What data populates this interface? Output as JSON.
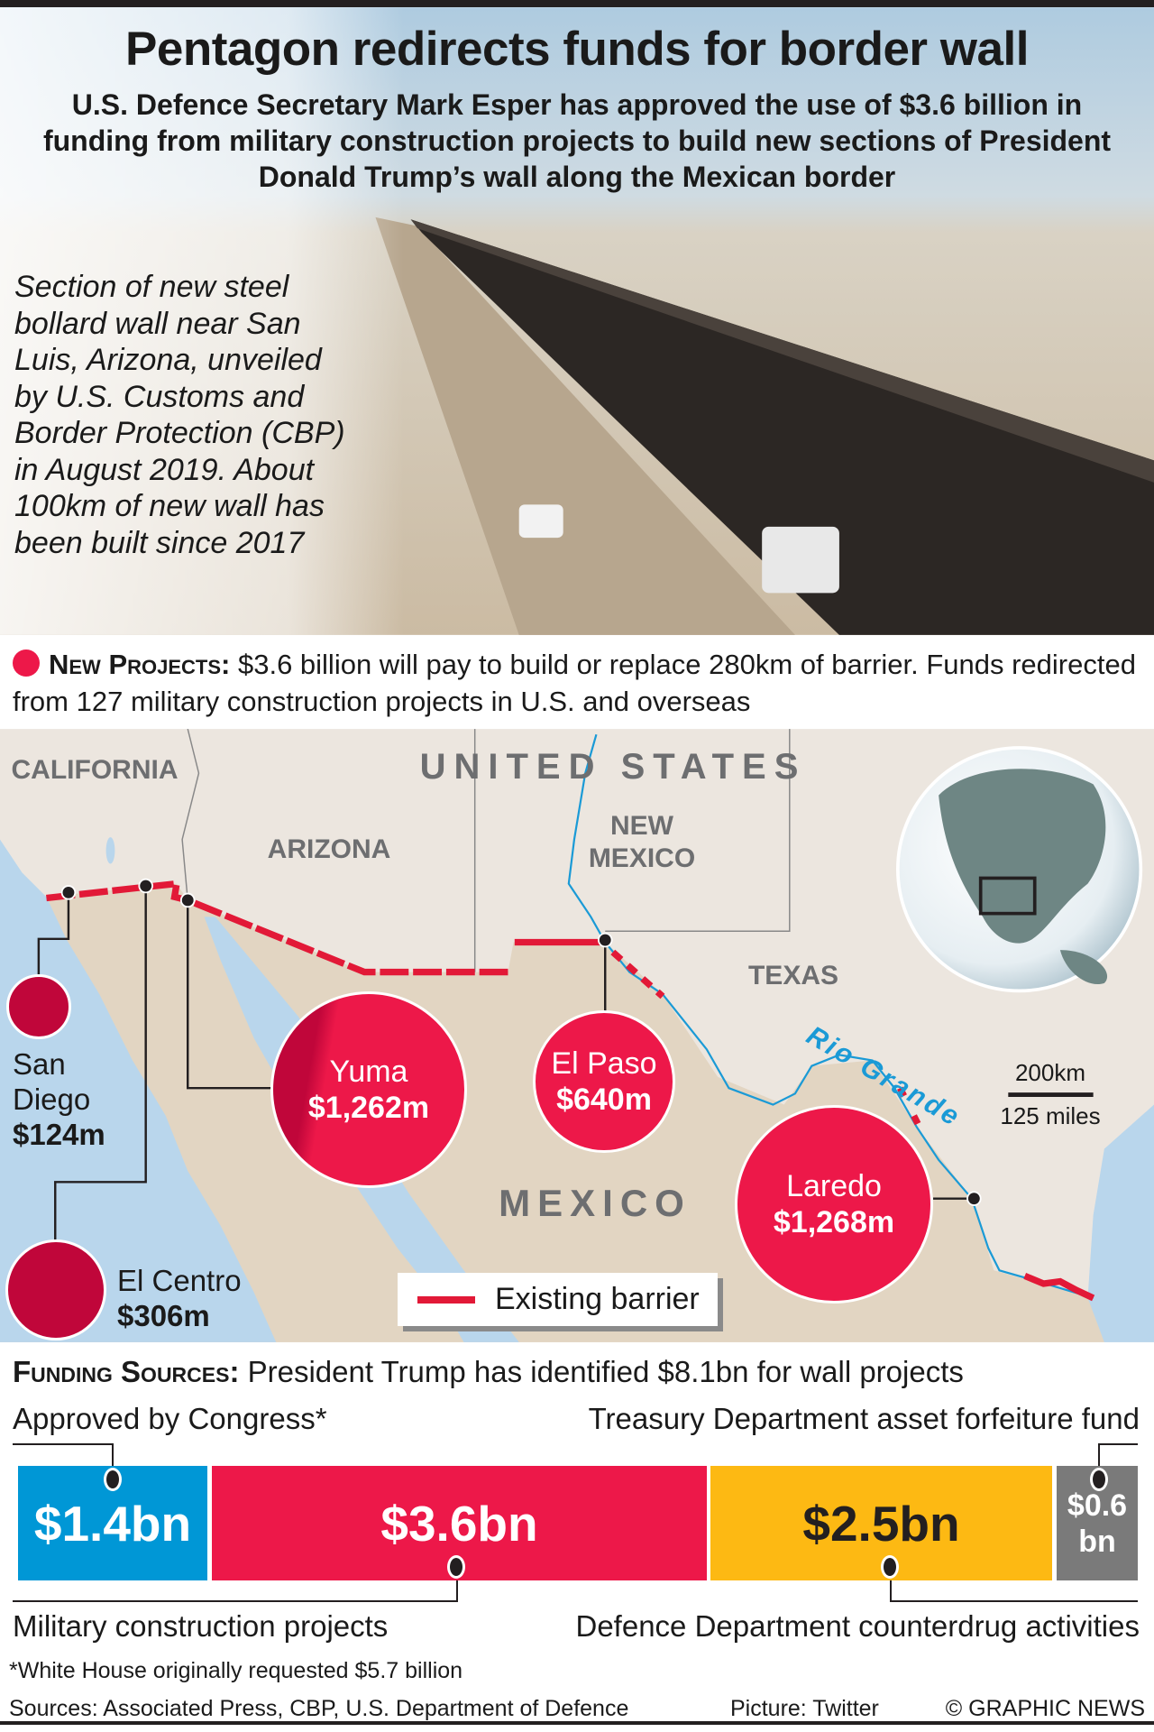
{
  "header": {
    "title": "Pentagon redirects funds for border wall",
    "subtitle": "U.S. Defence Secretary Mark Esper has approved the use of $3.6 billion in funding from military construction projects to build new sections of President Donald Trump’s wall along the Mexican border",
    "photo_caption": "Section of new steel bollard wall near San Luis, Arizona, unveiled by U.S. Customs and Border Protection (CBP) in August 2019. About 100km of new wall has been built since 2017"
  },
  "new_projects": {
    "heading": "New Projects:",
    "text": " $3.6 billion will pay to build or replace 280km of barrier. Funds redirected from 127 military construction projects in U.S. and overseas"
  },
  "map": {
    "labels": {
      "california": "CALIFORNIA",
      "united_states": "UNITED STATES",
      "arizona": "ARIZONA",
      "new_mexico": "NEW MEXICO",
      "texas": "TEXAS",
      "mexico": "MEXICO",
      "rio_grande": "Rio Grande"
    },
    "scale": {
      "km": "200km",
      "miles": "125 miles"
    },
    "legend": "Existing barrier",
    "projects": [
      {
        "name": "San Diego",
        "amount": "$124m"
      },
      {
        "name": "El Centro",
        "amount": "$306m"
      },
      {
        "name": "Yuma",
        "amount": "$1,262m"
      },
      {
        "name": "El Paso",
        "amount": "$640m"
      },
      {
        "name": "Laredo",
        "amount": "$1,268m"
      }
    ],
    "colors": {
      "project": "#ed1849",
      "project_dark": "#c0063a",
      "barrier": "#e21937",
      "river": "#1a9ad6"
    }
  },
  "funding": {
    "heading": "Funding Sources:",
    "text": " President Trump has identified $8.1bn for wall projects",
    "segments": [
      {
        "label": "Approved by Congress*",
        "value": "$1.4bn",
        "amount_bn": 1.4,
        "color": "#0097d6"
      },
      {
        "label": "Military construction projects",
        "value": "$3.6bn",
        "amount_bn": 3.6,
        "color": "#ed1849"
      },
      {
        "label": "Defence Department counterdrug activities",
        "value": "$2.5bn",
        "amount_bn": 2.5,
        "color": "#fdb913"
      },
      {
        "label": "Treasury Department asset forfeiture fund",
        "value": "$0.6 bn",
        "amount_bn": 0.6,
        "color": "#7a7a7a"
      }
    ]
  },
  "footer": {
    "footnote": "*White House originally requested $5.7 billion",
    "sources": "Sources: Associated Press, CBP, U.S. Department of Defence",
    "picture": "Picture: Twitter",
    "credit": "© GRAPHIC NEWS"
  }
}
